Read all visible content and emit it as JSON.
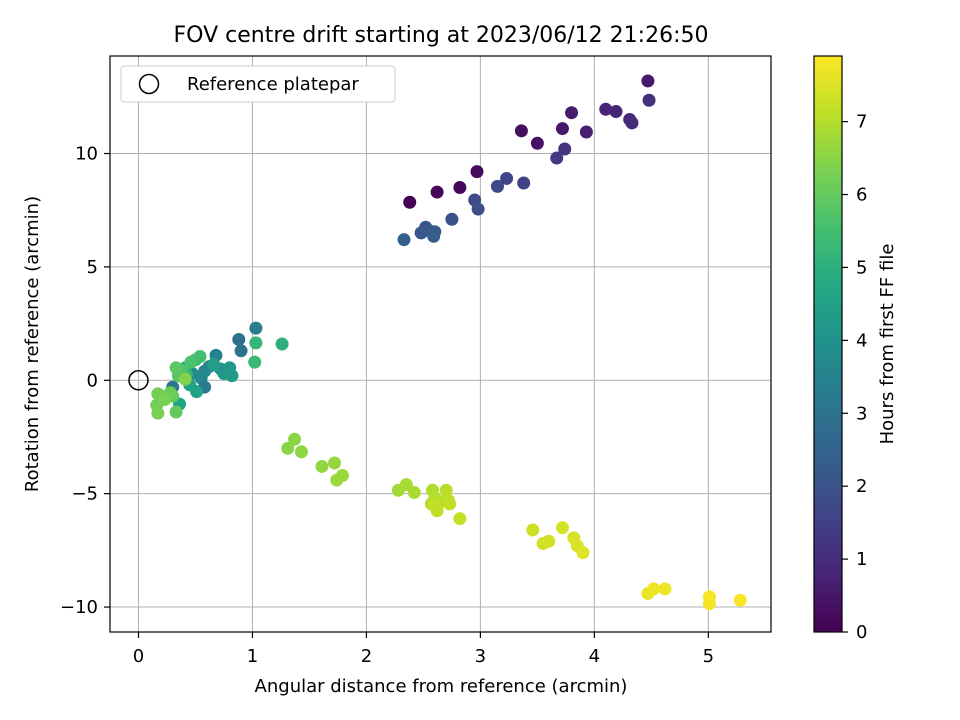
{
  "chart_data": {
    "type": "scatter",
    "title": "FOV centre drift starting at 2023/06/12 21:26:50",
    "xlabel": "Angular distance from reference (arcmin)",
    "ylabel": "Rotation from reference (arcmin)",
    "xlim": [
      -0.25,
      5.55
    ],
    "ylim": [
      -11.1,
      14.3
    ],
    "xticks": [
      0,
      1,
      2,
      3,
      4,
      5
    ],
    "xtick_labels": [
      "0",
      "1",
      "2",
      "3",
      "4",
      "5"
    ],
    "yticks": [
      -10,
      -5,
      0,
      5,
      10
    ],
    "ytick_labels": [
      "−10",
      "−5",
      "0",
      "5",
      "10"
    ],
    "grid": true,
    "legend": {
      "label": "Reference platepar",
      "placement": "top-left"
    },
    "reference_marker": {
      "x": 0,
      "y": 0
    },
    "colorbar": {
      "label": "Hours from first FF file",
      "colormap": "viridis",
      "range": [
        0,
        7.9
      ],
      "ticks": [
        0,
        1,
        2,
        3,
        4,
        5,
        6,
        7
      ],
      "tick_labels": [
        "0",
        "1",
        "2",
        "3",
        "4",
        "5",
        "6",
        "7"
      ]
    },
    "points": [
      {
        "x": 2.38,
        "y": 7.85,
        "c": 0.0
      },
      {
        "x": 2.62,
        "y": 8.3,
        "c": 0.1
      },
      {
        "x": 2.82,
        "y": 8.5,
        "c": 0.15
      },
      {
        "x": 2.97,
        "y": 9.2,
        "c": 0.2
      },
      {
        "x": 3.36,
        "y": 11.0,
        "c": 0.3
      },
      {
        "x": 3.5,
        "y": 10.45,
        "c": 0.35
      },
      {
        "x": 3.72,
        "y": 11.1,
        "c": 0.5
      },
      {
        "x": 3.8,
        "y": 11.8,
        "c": 0.6
      },
      {
        "x": 3.93,
        "y": 10.95,
        "c": 0.7
      },
      {
        "x": 4.1,
        "y": 11.95,
        "c": 0.8
      },
      {
        "x": 4.19,
        "y": 11.85,
        "c": 0.85
      },
      {
        "x": 4.31,
        "y": 11.5,
        "c": 0.9
      },
      {
        "x": 4.33,
        "y": 11.35,
        "c": 1.0
      },
      {
        "x": 4.47,
        "y": 13.2,
        "c": 0.55
      },
      {
        "x": 4.48,
        "y": 12.35,
        "c": 1.1
      },
      {
        "x": 3.74,
        "y": 10.2,
        "c": 1.2
      },
      {
        "x": 3.67,
        "y": 9.8,
        "c": 1.3
      },
      {
        "x": 3.38,
        "y": 8.7,
        "c": 1.5
      },
      {
        "x": 3.23,
        "y": 8.9,
        "c": 1.6
      },
      {
        "x": 3.15,
        "y": 8.55,
        "c": 1.7
      },
      {
        "x": 2.95,
        "y": 7.95,
        "c": 1.8
      },
      {
        "x": 2.98,
        "y": 7.55,
        "c": 1.9
      },
      {
        "x": 2.75,
        "y": 7.1,
        "c": 1.95
      },
      {
        "x": 2.52,
        "y": 6.75,
        "c": 2.05
      },
      {
        "x": 2.55,
        "y": 6.6,
        "c": 2.1
      },
      {
        "x": 2.48,
        "y": 6.5,
        "c": 2.15
      },
      {
        "x": 2.6,
        "y": 6.55,
        "c": 2.2
      },
      {
        "x": 2.59,
        "y": 6.35,
        "c": 2.3
      },
      {
        "x": 2.33,
        "y": 6.2,
        "c": 2.4
      },
      {
        "x": 0.88,
        "y": 1.8,
        "c": 2.9
      },
      {
        "x": 0.9,
        "y": 1.3,
        "c": 3.0
      },
      {
        "x": 1.03,
        "y": 2.3,
        "c": 3.3
      },
      {
        "x": 0.68,
        "y": 1.1,
        "c": 3.4
      },
      {
        "x": 0.58,
        "y": 0.4,
        "c": 3.5
      },
      {
        "x": 0.62,
        "y": 0.6,
        "c": 3.6
      },
      {
        "x": 0.55,
        "y": 0.1,
        "c": 3.7
      },
      {
        "x": 0.58,
        "y": -0.3,
        "c": 3.2
      },
      {
        "x": 0.47,
        "y": 0.3,
        "c": 3.8
      },
      {
        "x": 0.72,
        "y": 0.5,
        "c": 4.0
      },
      {
        "x": 0.75,
        "y": 0.3,
        "c": 4.1
      },
      {
        "x": 0.8,
        "y": 0.55,
        "c": 4.2
      },
      {
        "x": 0.82,
        "y": 0.2,
        "c": 4.3
      },
      {
        "x": 0.66,
        "y": 0.7,
        "c": 4.4
      },
      {
        "x": 0.51,
        "y": -0.5,
        "c": 4.5
      },
      {
        "x": 0.45,
        "y": -0.2,
        "c": 4.6
      },
      {
        "x": 0.36,
        "y": -1.05,
        "c": 4.7
      },
      {
        "x": 0.3,
        "y": -0.3,
        "c": 3.1
      },
      {
        "x": 1.26,
        "y": 1.6,
        "c": 5.0
      },
      {
        "x": 1.03,
        "y": 1.65,
        "c": 5.2
      },
      {
        "x": 1.02,
        "y": 0.8,
        "c": 5.3
      },
      {
        "x": 0.41,
        "y": 0.55,
        "c": 5.1
      },
      {
        "x": 0.42,
        "y": 0.25,
        "c": 5.2
      },
      {
        "x": 0.5,
        "y": 0.9,
        "c": 5.4
      },
      {
        "x": 0.54,
        "y": 1.05,
        "c": 5.5
      },
      {
        "x": 0.46,
        "y": 0.8,
        "c": 5.6
      },
      {
        "x": 0.38,
        "y": 0.4,
        "c": 5.7
      },
      {
        "x": 0.35,
        "y": 0.2,
        "c": 5.8
      },
      {
        "x": 0.33,
        "y": 0.55,
        "c": 5.9
      },
      {
        "x": 0.3,
        "y": -0.7,
        "c": 6.0
      },
      {
        "x": 0.33,
        "y": -1.4,
        "c": 6.0
      },
      {
        "x": 0.28,
        "y": -0.55,
        "c": 6.1
      },
      {
        "x": 0.2,
        "y": -0.7,
        "c": 6.1
      },
      {
        "x": 0.17,
        "y": -0.6,
        "c": 6.2
      },
      {
        "x": 0.16,
        "y": -1.1,
        "c": 6.2
      },
      {
        "x": 0.17,
        "y": -1.45,
        "c": 6.3
      },
      {
        "x": 0.23,
        "y": -0.85,
        "c": 6.3
      },
      {
        "x": 0.41,
        "y": 0.05,
        "c": 6.4
      },
      {
        "x": 1.31,
        "y": -3.0,
        "c": 6.5
      },
      {
        "x": 1.37,
        "y": -2.6,
        "c": 6.5
      },
      {
        "x": 1.43,
        "y": -3.15,
        "c": 6.55
      },
      {
        "x": 1.61,
        "y": -3.8,
        "c": 6.6
      },
      {
        "x": 1.72,
        "y": -3.65,
        "c": 6.65
      },
      {
        "x": 1.79,
        "y": -4.2,
        "c": 6.7
      },
      {
        "x": 1.74,
        "y": -4.4,
        "c": 6.7
      },
      {
        "x": 2.28,
        "y": -4.85,
        "c": 6.8
      },
      {
        "x": 2.35,
        "y": -4.6,
        "c": 6.85
      },
      {
        "x": 2.42,
        "y": -4.95,
        "c": 6.9
      },
      {
        "x": 2.58,
        "y": -4.85,
        "c": 6.95
      },
      {
        "x": 2.6,
        "y": -5.2,
        "c": 7.0
      },
      {
        "x": 2.57,
        "y": -5.45,
        "c": 7.0
      },
      {
        "x": 2.65,
        "y": -5.35,
        "c": 7.05
      },
      {
        "x": 2.7,
        "y": -4.85,
        "c": 7.05
      },
      {
        "x": 2.72,
        "y": -5.3,
        "c": 7.1
      },
      {
        "x": 2.62,
        "y": -5.75,
        "c": 7.1
      },
      {
        "x": 2.6,
        "y": -5.5,
        "c": 7.15
      },
      {
        "x": 2.73,
        "y": -5.45,
        "c": 7.15
      },
      {
        "x": 2.82,
        "y": -6.1,
        "c": 7.2
      },
      {
        "x": 3.46,
        "y": -6.6,
        "c": 7.3
      },
      {
        "x": 3.55,
        "y": -7.2,
        "c": 7.35
      },
      {
        "x": 3.6,
        "y": -7.1,
        "c": 7.35
      },
      {
        "x": 3.72,
        "y": -6.5,
        "c": 7.4
      },
      {
        "x": 3.82,
        "y": -6.95,
        "c": 7.45
      },
      {
        "x": 3.85,
        "y": -7.3,
        "c": 7.45
      },
      {
        "x": 3.9,
        "y": -7.6,
        "c": 7.5
      },
      {
        "x": 4.47,
        "y": -9.4,
        "c": 7.65
      },
      {
        "x": 4.52,
        "y": -9.2,
        "c": 7.7
      },
      {
        "x": 4.62,
        "y": -9.2,
        "c": 7.7
      },
      {
        "x": 5.01,
        "y": -9.55,
        "c": 7.8
      },
      {
        "x": 5.01,
        "y": -9.85,
        "c": 7.8
      },
      {
        "x": 5.28,
        "y": -9.7,
        "c": 7.85
      }
    ]
  }
}
